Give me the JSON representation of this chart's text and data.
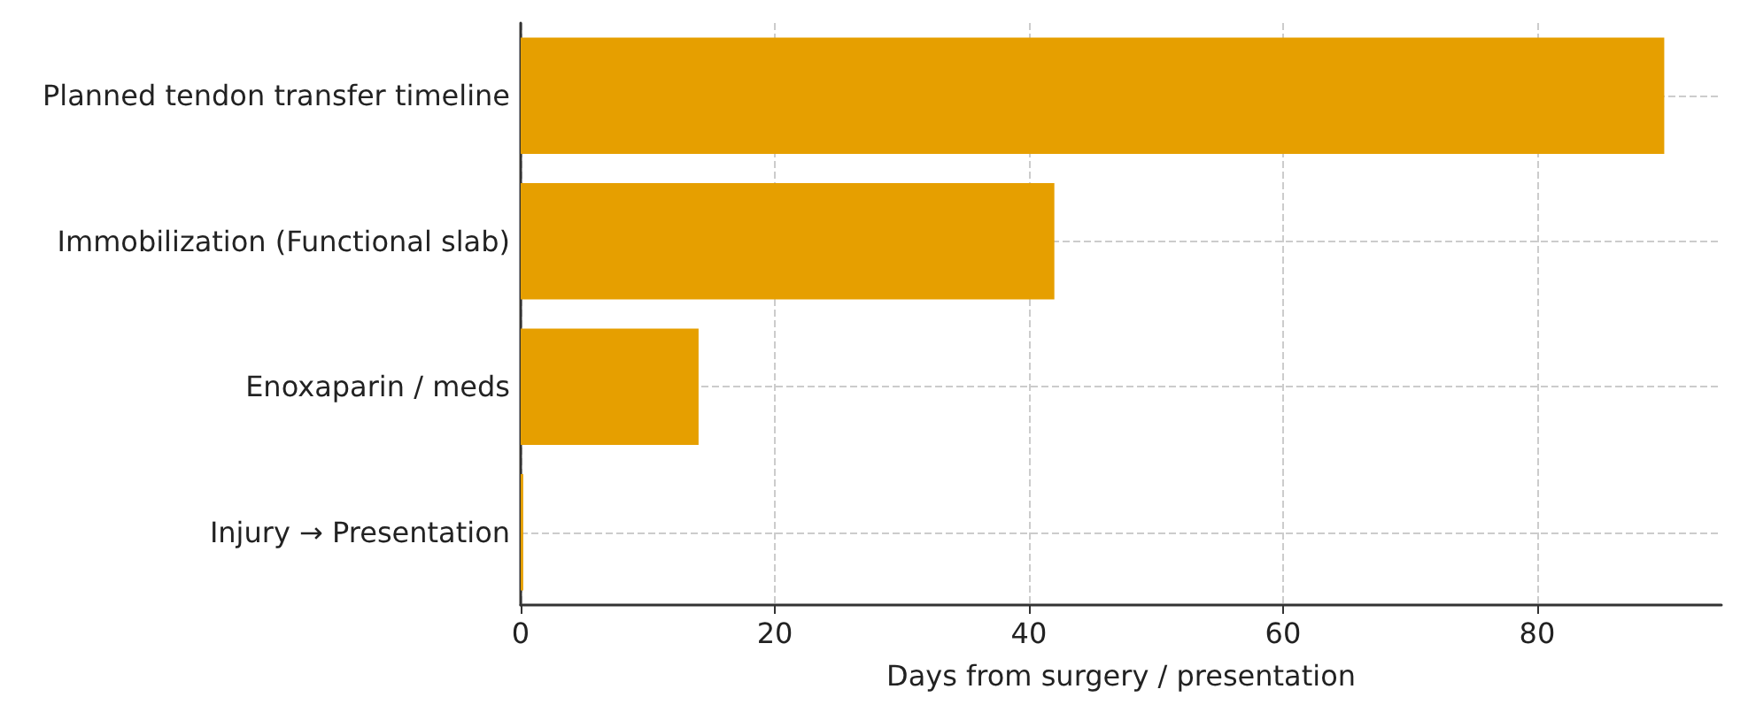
{
  "chart_data": {
    "type": "bar",
    "orientation": "horizontal",
    "xlabel": "Days from surgery / presentation",
    "categories": [
      "Planned tendon transfer timeline",
      "Immobilization (Functional slab)",
      "Enoxaparin / meds",
      "Injury → Presentation"
    ],
    "values": [
      90,
      42,
      14,
      0.2
    ],
    "color": "#e69f00",
    "xlim": [
      0,
      94.5
    ],
    "xticks": [
      0,
      20,
      40,
      60,
      80
    ],
    "grid": true
  }
}
